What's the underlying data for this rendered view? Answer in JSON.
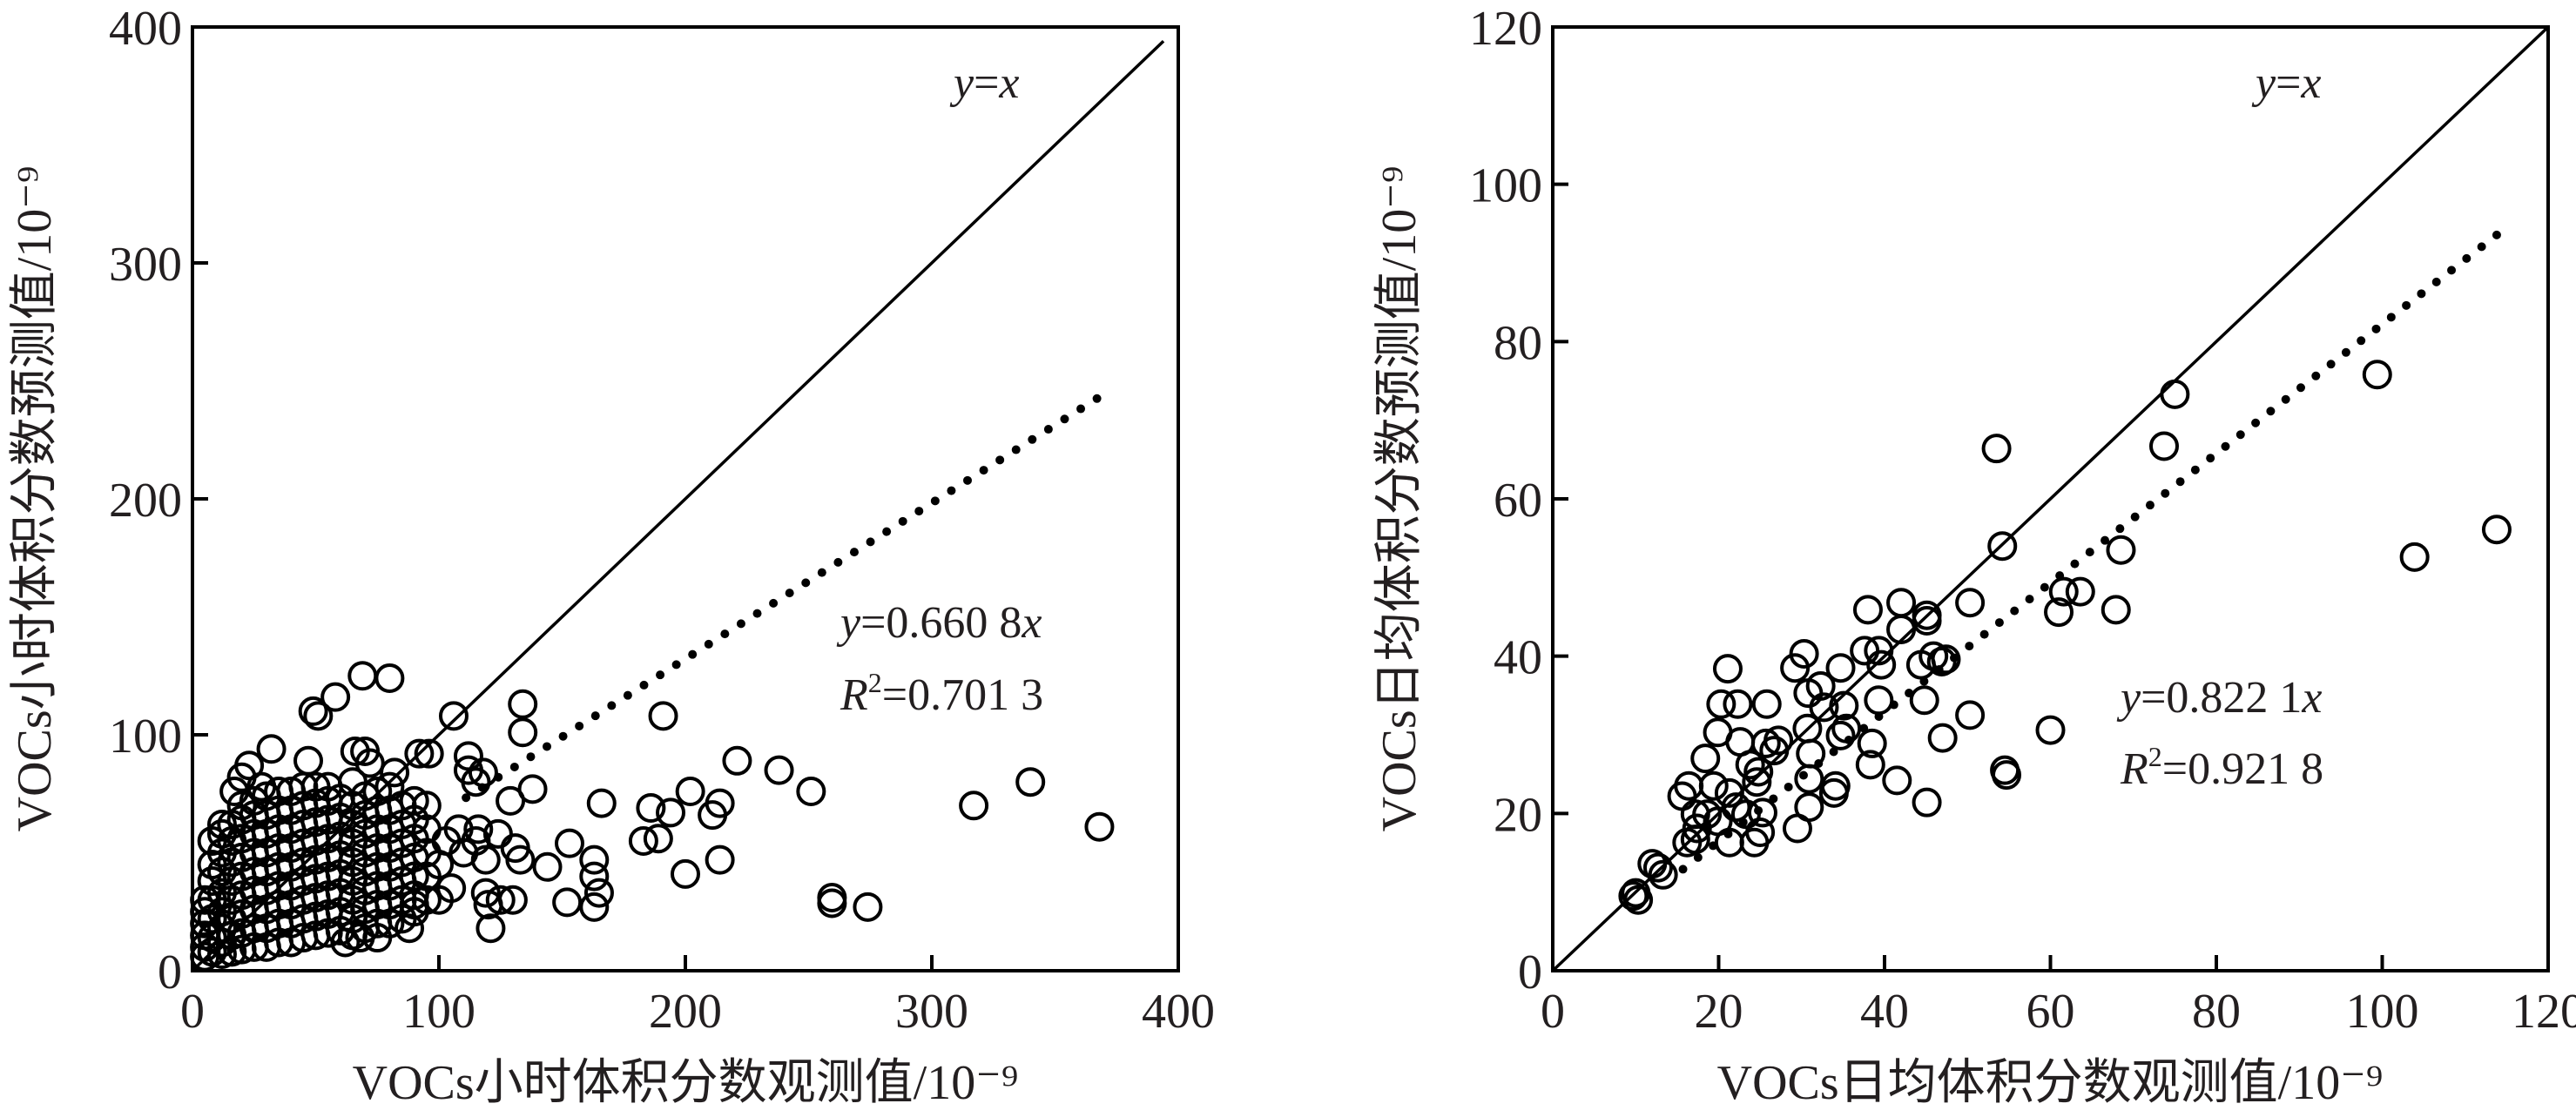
{
  "chart_data": [
    {
      "type": "scatter",
      "xlabel": "VOCs小时体积分数观测值/10⁻⁹",
      "ylabel": "VOCs小时体积分数预测值/10⁻⁹",
      "xlim": [
        0,
        400
      ],
      "ylim": [
        0,
        400
      ],
      "xticks": [
        "0",
        "100",
        "200",
        "300",
        "400"
      ],
      "yticks": [
        "0",
        "100",
        "200",
        "300",
        "400"
      ],
      "grid": false,
      "marker": "open-circle",
      "color": "#000000",
      "reference_line": {
        "label_lhs": "y",
        "label_eq": "=",
        "label_rhs": "x",
        "slope": 1,
        "style": "solid"
      },
      "fit_line": {
        "slope": 0.6608,
        "x_range": [
          111,
          367
        ],
        "style": "dotted",
        "eq_lhs": "y",
        "eq_rhs": "=0.660 8",
        "eq_var": "x",
        "r2_sym": "R",
        "r2_exp": "2",
        "r2_val": "=0.701 3"
      },
      "points": [
        [
          368,
          61
        ],
        [
          340,
          80
        ],
        [
          317,
          70
        ],
        [
          274,
          27
        ],
        [
          259.5,
          31
        ],
        [
          259.5,
          28.6
        ],
        [
          251,
          76
        ],
        [
          238,
          85
        ],
        [
          221,
          89
        ],
        [
          202,
          76
        ],
        [
          211,
          66
        ],
        [
          214,
          71
        ],
        [
          200,
          41
        ],
        [
          214,
          47
        ],
        [
          191,
          108
        ],
        [
          194,
          67
        ],
        [
          186,
          69
        ],
        [
          189,
          56
        ],
        [
          183,
          55
        ],
        [
          166,
          71
        ],
        [
          163,
          47
        ],
        [
          163,
          40
        ],
        [
          165,
          33
        ],
        [
          163,
          27
        ],
        [
          153,
          54
        ],
        [
          152,
          29
        ],
        [
          144,
          44
        ],
        [
          134,
          113
        ],
        [
          134,
          101
        ],
        [
          138,
          77
        ],
        [
          129,
          72
        ],
        [
          121,
          18
        ],
        [
          119,
          47
        ],
        [
          119,
          33
        ],
        [
          112,
          91
        ],
        [
          115,
          80
        ],
        [
          106,
          108
        ],
        [
          80,
          124
        ],
        [
          69,
          125
        ],
        [
          58,
          116
        ],
        [
          51,
          108
        ],
        [
          49,
          110
        ],
        [
          32,
          94
        ],
        [
          23,
          87
        ],
        [
          5,
          6
        ],
        [
          5,
          10
        ],
        [
          5,
          15
        ],
        [
          5,
          20
        ],
        [
          5,
          25
        ],
        [
          5,
          30
        ],
        [
          8,
          8
        ],
        [
          8,
          14
        ],
        [
          8,
          22
        ],
        [
          8,
          30
        ],
        [
          8,
          38
        ],
        [
          8,
          45
        ],
        [
          12,
          7
        ],
        [
          12,
          12
        ],
        [
          12,
          18
        ],
        [
          12,
          25
        ],
        [
          12,
          33
        ],
        [
          12,
          42
        ],
        [
          12,
          50
        ],
        [
          12,
          58
        ],
        [
          16,
          8
        ],
        [
          16,
          15
        ],
        [
          16,
          22
        ],
        [
          16,
          30
        ],
        [
          16,
          38
        ],
        [
          16,
          46
        ],
        [
          16,
          55
        ],
        [
          16,
          62
        ],
        [
          20,
          9
        ],
        [
          20,
          16
        ],
        [
          20,
          24
        ],
        [
          20,
          32
        ],
        [
          20,
          40
        ],
        [
          20,
          48
        ],
        [
          20,
          56
        ],
        [
          20,
          64
        ],
        [
          20,
          70
        ],
        [
          25,
          10
        ],
        [
          25,
          18
        ],
        [
          25,
          26
        ],
        [
          25,
          34
        ],
        [
          25,
          42
        ],
        [
          25,
          50
        ],
        [
          25,
          58
        ],
        [
          25,
          66
        ],
        [
          25,
          72
        ],
        [
          30,
          10
        ],
        [
          30,
          18
        ],
        [
          30,
          26
        ],
        [
          30,
          34
        ],
        [
          30,
          42
        ],
        [
          30,
          50
        ],
        [
          30,
          58
        ],
        [
          30,
          66
        ],
        [
          30,
          74
        ],
        [
          35,
          12
        ],
        [
          35,
          20
        ],
        [
          35,
          28
        ],
        [
          35,
          36
        ],
        [
          35,
          44
        ],
        [
          35,
          52
        ],
        [
          35,
          60
        ],
        [
          35,
          68
        ],
        [
          35,
          76
        ],
        [
          40,
          12
        ],
        [
          40,
          20
        ],
        [
          40,
          28
        ],
        [
          40,
          36
        ],
        [
          40,
          44
        ],
        [
          40,
          52
        ],
        [
          40,
          60
        ],
        [
          40,
          68
        ],
        [
          40,
          76
        ],
        [
          45,
          14
        ],
        [
          45,
          22
        ],
        [
          45,
          30
        ],
        [
          45,
          38
        ],
        [
          45,
          46
        ],
        [
          45,
          54
        ],
        [
          45,
          62
        ],
        [
          45,
          70
        ],
        [
          45,
          78
        ],
        [
          50,
          15
        ],
        [
          50,
          23
        ],
        [
          50,
          31
        ],
        [
          50,
          39
        ],
        [
          50,
          47
        ],
        [
          50,
          55
        ],
        [
          50,
          63
        ],
        [
          50,
          71
        ],
        [
          50,
          78
        ],
        [
          55,
          16
        ],
        [
          55,
          24
        ],
        [
          55,
          32
        ],
        [
          55,
          40
        ],
        [
          55,
          48
        ],
        [
          55,
          56
        ],
        [
          55,
          64
        ],
        [
          55,
          72
        ],
        [
          55,
          78
        ],
        [
          60,
          17
        ],
        [
          60,
          25
        ],
        [
          60,
          33
        ],
        [
          60,
          41
        ],
        [
          60,
          49
        ],
        [
          60,
          57
        ],
        [
          60,
          65
        ],
        [
          60,
          73
        ],
        [
          65,
          15
        ],
        [
          65,
          22
        ],
        [
          65,
          30
        ],
        [
          65,
          38
        ],
        [
          65,
          46
        ],
        [
          65,
          54
        ],
        [
          65,
          62
        ],
        [
          65,
          70
        ],
        [
          65,
          80
        ],
        [
          70,
          18
        ],
        [
          70,
          26
        ],
        [
          70,
          34
        ],
        [
          70,
          42
        ],
        [
          70,
          50
        ],
        [
          70,
          58
        ],
        [
          70,
          66
        ],
        [
          70,
          74
        ],
        [
          75,
          20
        ],
        [
          75,
          28
        ],
        [
          75,
          36
        ],
        [
          75,
          44
        ],
        [
          75,
          52
        ],
        [
          75,
          60
        ],
        [
          75,
          68
        ],
        [
          75,
          76
        ],
        [
          80,
          20
        ],
        [
          80,
          28
        ],
        [
          80,
          36
        ],
        [
          80,
          44
        ],
        [
          80,
          52
        ],
        [
          80,
          60
        ],
        [
          80,
          68
        ],
        [
          80,
          78
        ],
        [
          85,
          22
        ],
        [
          85,
          30
        ],
        [
          85,
          38
        ],
        [
          85,
          46
        ],
        [
          85,
          54
        ],
        [
          85,
          62
        ],
        [
          85,
          70
        ],
        [
          90,
          25
        ],
        [
          90,
          32
        ],
        [
          90,
          40
        ],
        [
          90,
          48
        ],
        [
          90,
          56
        ],
        [
          90,
          64
        ],
        [
          90,
          72
        ],
        [
          95,
          30
        ],
        [
          95,
          40
        ],
        [
          95,
          50
        ],
        [
          95,
          60
        ],
        [
          95,
          70
        ],
        [
          100,
          30
        ],
        [
          105,
          35
        ],
        [
          100,
          45
        ],
        [
          103,
          55
        ],
        [
          108,
          60
        ],
        [
          110,
          50
        ],
        [
          115,
          55
        ],
        [
          120,
          28
        ],
        [
          125,
          30
        ],
        [
          130,
          30
        ],
        [
          112,
          85
        ],
        [
          118,
          84
        ],
        [
          92,
          92
        ],
        [
          96,
          92
        ],
        [
          66,
          93
        ],
        [
          70,
          93
        ],
        [
          72,
          88
        ],
        [
          82,
          84
        ],
        [
          47,
          89
        ],
        [
          28,
          78
        ],
        [
          20,
          82
        ],
        [
          17,
          76
        ],
        [
          12,
          62
        ],
        [
          8,
          55
        ],
        [
          62,
          12
        ],
        [
          68,
          14
        ],
        [
          75,
          14
        ],
        [
          88,
          18
        ],
        [
          90,
          28
        ],
        [
          116,
          60
        ],
        [
          124,
          58
        ],
        [
          131,
          52
        ],
        [
          133,
          47
        ]
      ]
    },
    {
      "type": "scatter",
      "xlabel": "VOCs日均体积分数观测值/10⁻⁹",
      "ylabel": "VOCs日均体积分数预测值/10⁻⁹",
      "xlim": [
        0,
        120
      ],
      "ylim": [
        0,
        120
      ],
      "xticks": [
        "0",
        "20",
        "40",
        "60",
        "80",
        "100",
        "120"
      ],
      "yticks": [
        "0",
        "20",
        "40",
        "60",
        "80",
        "100",
        "120"
      ],
      "grid": false,
      "marker": "open-circle",
      "color": "#000000",
      "reference_line": {
        "label_lhs": "y",
        "label_eq": "=",
        "label_rhs": "x",
        "slope": 1,
        "style": "solid"
      },
      "fit_line": {
        "slope": 0.8221,
        "x_range": [
          15.7,
          113.8
        ],
        "style": "dotted",
        "eq_lhs": "y",
        "eq_rhs": "=0.822 1",
        "eq_var": "x",
        "r2_sym": "R",
        "r2_exp": "2",
        "r2_val": "=0.921 8"
      },
      "points": [
        [
          113.8,
          56.1
        ],
        [
          103.9,
          52.6
        ],
        [
          99.4,
          75.8
        ],
        [
          75,
          73.3
        ],
        [
          73.7,
          66.7
        ],
        [
          53.5,
          66.4
        ],
        [
          54.2,
          54
        ],
        [
          68.5,
          53.5
        ],
        [
          67.9,
          45.9
        ],
        [
          63.6,
          48.2
        ],
        [
          61.6,
          48.2
        ],
        [
          61,
          45.6
        ],
        [
          60,
          30.6
        ],
        [
          50.3,
          46.8
        ],
        [
          50.3,
          32.5
        ],
        [
          54.5,
          25.5
        ],
        [
          54.7,
          24.9
        ],
        [
          47,
          29.6
        ],
        [
          45.1,
          21.4
        ],
        [
          44.8,
          34.4
        ],
        [
          45.1,
          45.2
        ],
        [
          45.1,
          44.5
        ],
        [
          42,
          46.8
        ],
        [
          42,
          43.4
        ],
        [
          44.4,
          38.9
        ],
        [
          45.9,
          40
        ],
        [
          46.9,
          39.3
        ],
        [
          47.4,
          39.6
        ],
        [
          39.3,
          40.7
        ],
        [
          39.6,
          38.9
        ],
        [
          38,
          45.9
        ],
        [
          37.6,
          40.7
        ],
        [
          39.3,
          34.4
        ],
        [
          38.5,
          28.9
        ],
        [
          38.3,
          26.2
        ],
        [
          41.5,
          24.2
        ],
        [
          34.7,
          38.5
        ],
        [
          35.1,
          33.7
        ],
        [
          35.4,
          30.8
        ],
        [
          34.7,
          29.9
        ],
        [
          34.1,
          23.5
        ],
        [
          33.9,
          22.6
        ],
        [
          32.7,
          33.5
        ],
        [
          32.3,
          36.2
        ],
        [
          30.3,
          40.3
        ],
        [
          29.2,
          38.5
        ],
        [
          30.8,
          35.3
        ],
        [
          30.7,
          30.8
        ],
        [
          31.1,
          27.6
        ],
        [
          30.9,
          24.4
        ],
        [
          30.9,
          20.8
        ],
        [
          29.5,
          18.1
        ],
        [
          27.2,
          29.3
        ],
        [
          26.7,
          28
        ],
        [
          25.7,
          28.9
        ],
        [
          25.8,
          33.9
        ],
        [
          23.8,
          26.2
        ],
        [
          24.8,
          25.3
        ],
        [
          24.6,
          24
        ],
        [
          22.3,
          33.9
        ],
        [
          22.6,
          29.1
        ],
        [
          20.3,
          33.9
        ],
        [
          21.1,
          38.4
        ],
        [
          19.9,
          30.3
        ],
        [
          18.4,
          27
        ],
        [
          19.4,
          23.5
        ],
        [
          21.3,
          22.6
        ],
        [
          22.1,
          20.8
        ],
        [
          23.3,
          19.9
        ],
        [
          25.3,
          20.1
        ],
        [
          25,
          17.6
        ],
        [
          24.3,
          16.3
        ],
        [
          21.3,
          16.3
        ],
        [
          17.4,
          18.1
        ],
        [
          18.6,
          19.9
        ],
        [
          17.2,
          19.9
        ],
        [
          16.4,
          23.5
        ],
        [
          15.6,
          22.2
        ],
        [
          16.2,
          16.3
        ],
        [
          17.2,
          16.7
        ],
        [
          19.9,
          19
        ],
        [
          12.7,
          13.1
        ],
        [
          12,
          13.6
        ],
        [
          13.3,
          12.2
        ],
        [
          10,
          9.9
        ],
        [
          10.3,
          9
        ],
        [
          9.7,
          9.5
        ]
      ]
    }
  ]
}
